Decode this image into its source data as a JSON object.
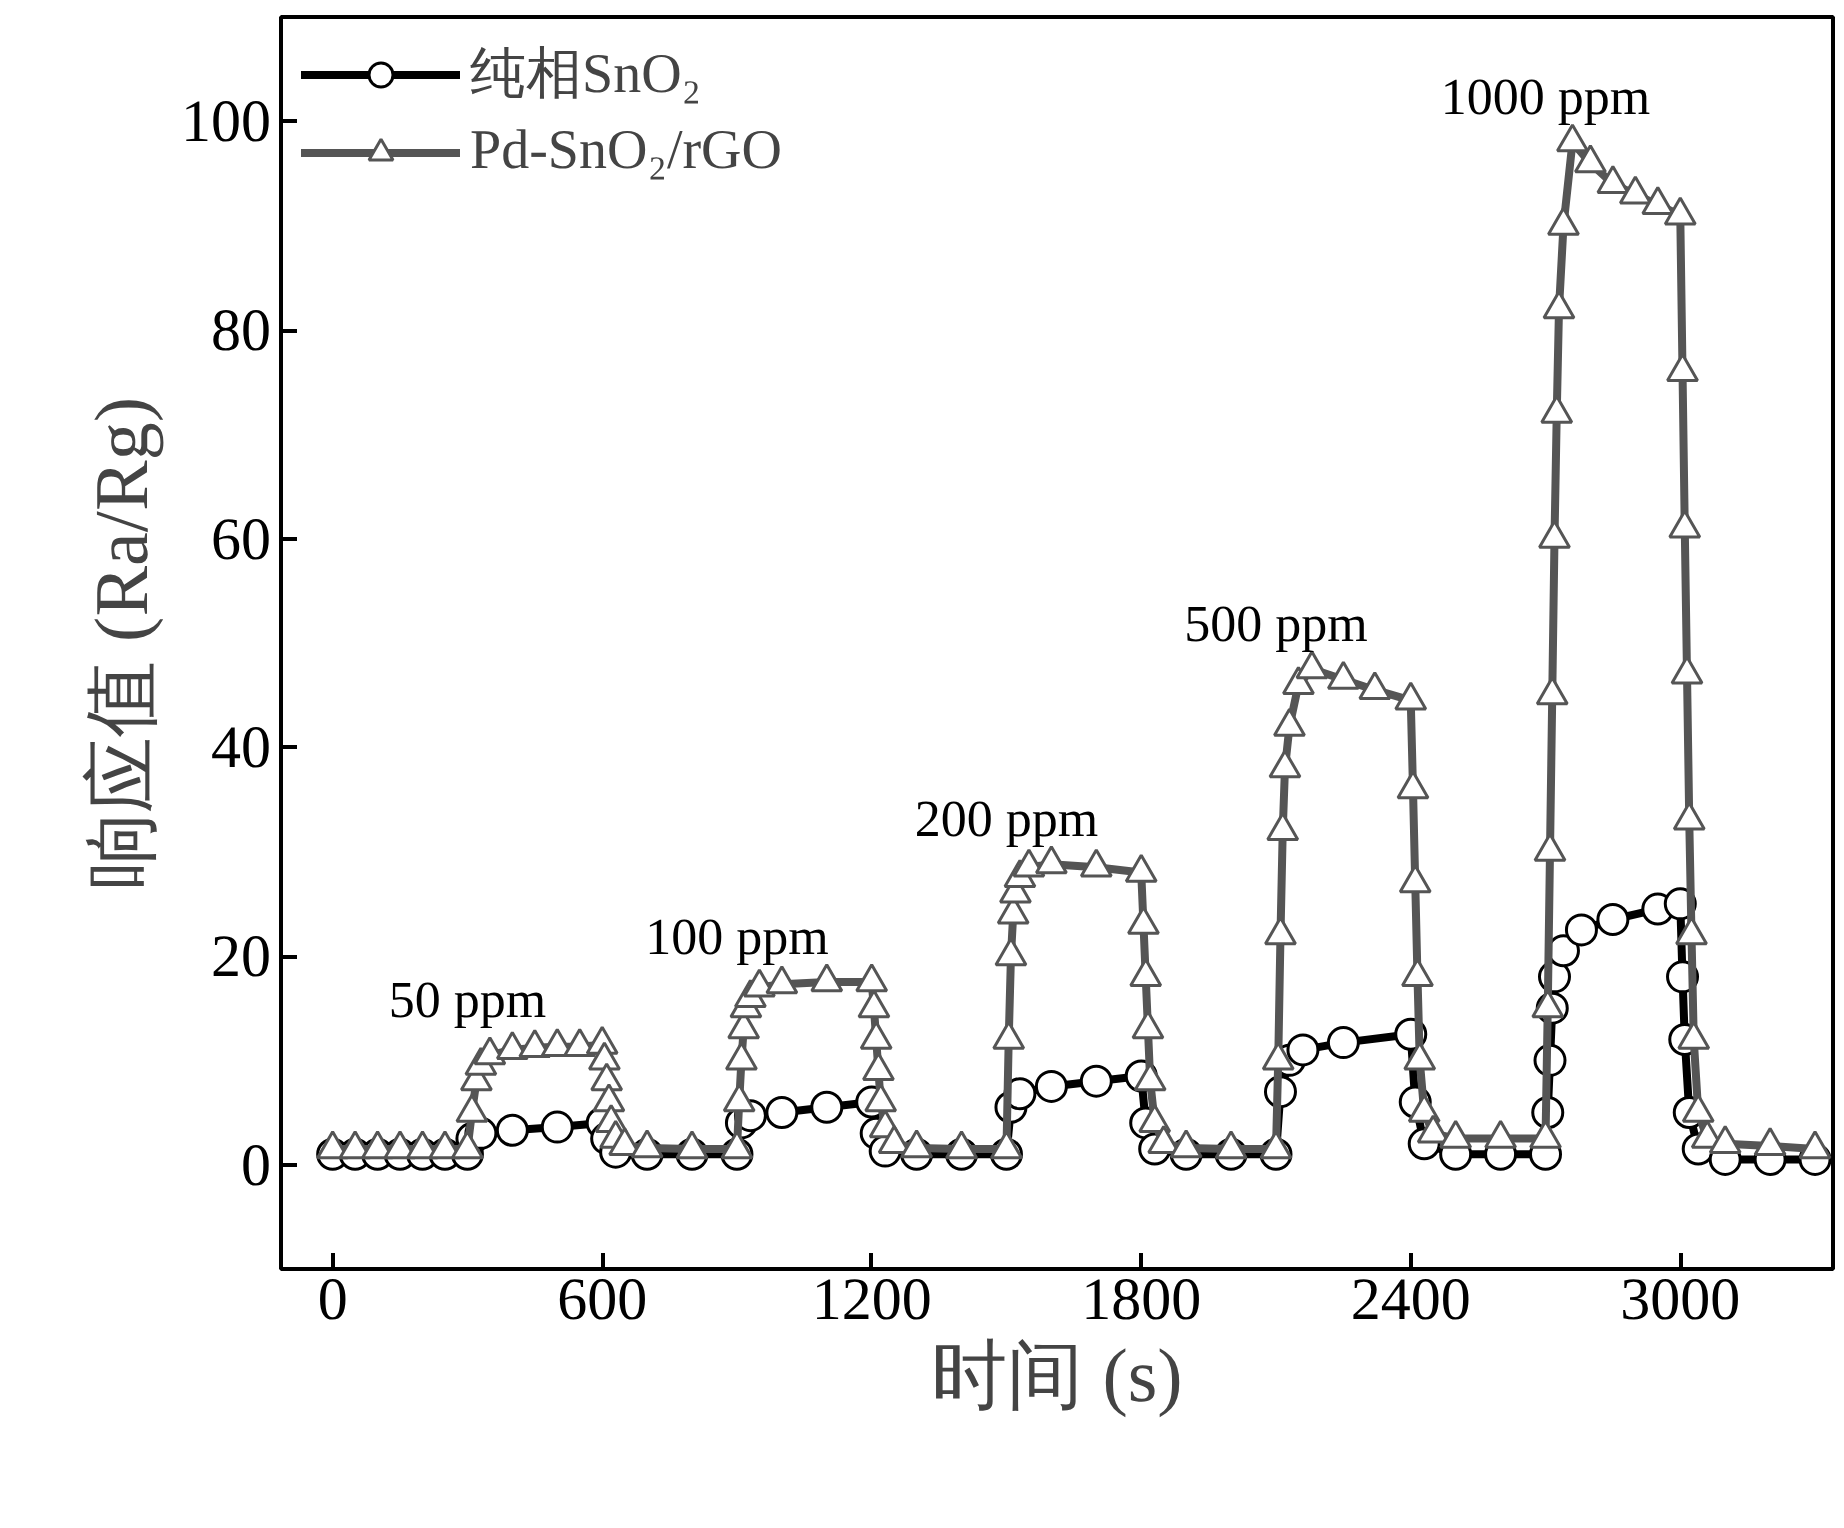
{
  "chart_data": {
    "type": "line",
    "xlabel": "时间 (s)",
    "ylabel": "响应值 (Ra/Rg)",
    "xlim": [
      -115,
      3340
    ],
    "ylim": [
      -10,
      110
    ],
    "xticks": [
      0,
      600,
      1200,
      1800,
      2400,
      3000
    ],
    "yticks": [
      0,
      20,
      40,
      60,
      80,
      100
    ],
    "grid": false,
    "legend": "top left",
    "line_style": "solid",
    "series": [
      {
        "name": "纯相SnO₂",
        "color": "#000000",
        "marker": "circle",
        "x": [
          0,
          50,
          100,
          150,
          200,
          250,
          300,
          310,
          330,
          400,
          500,
          600,
          610,
          630,
          700,
          800,
          900,
          910,
          930,
          1000,
          1100,
          1200,
          1210,
          1230,
          1300,
          1400,
          1500,
          1510,
          1530,
          1600,
          1700,
          1800,
          1810,
          1830,
          1900,
          2000,
          2100,
          2110,
          2130,
          2160,
          2250,
          2400,
          2410,
          2430,
          2500,
          2600,
          2700,
          2705,
          2710,
          2715,
          2720,
          2740,
          2780,
          2850,
          2950,
          3000,
          3005,
          3010,
          3020,
          3040,
          3100,
          3200,
          3300
        ],
        "values": [
          1,
          1,
          1,
          1,
          1,
          1,
          1,
          2.5,
          3,
          3.3,
          3.6,
          4,
          2.5,
          1.2,
          1,
          1,
          1,
          4,
          4.7,
          5,
          5.5,
          6,
          3,
          1.3,
          1,
          1,
          1,
          5.5,
          6.8,
          7.5,
          8,
          8.5,
          4,
          1.5,
          1,
          1,
          1,
          7,
          10,
          11,
          11.7,
          12.5,
          6,
          2,
          1,
          1,
          1,
          5,
          10,
          15,
          18,
          20.5,
          22.5,
          23.5,
          24.5,
          25,
          18,
          12,
          5,
          1.5,
          0.5,
          0.5,
          0.5
        ]
      },
      {
        "name": "Pd-SnO₂/rGO",
        "color": "#555555",
        "marker": "triangle",
        "x": [
          0,
          50,
          100,
          150,
          200,
          250,
          300,
          310,
          320,
          330,
          350,
          400,
          450,
          500,
          550,
          600,
          605,
          610,
          615,
          620,
          630,
          650,
          700,
          800,
          900,
          905,
          910,
          915,
          920,
          930,
          950,
          1000,
          1100,
          1200,
          1205,
          1210,
          1215,
          1220,
          1230,
          1250,
          1300,
          1400,
          1500,
          1505,
          1510,
          1515,
          1520,
          1530,
          1550,
          1600,
          1700,
          1800,
          1805,
          1810,
          1815,
          1820,
          1830,
          1850,
          1900,
          2000,
          2100,
          2105,
          2110,
          2115,
          2120,
          2130,
          2150,
          2180,
          2250,
          2320,
          2400,
          2405,
          2410,
          2415,
          2420,
          2430,
          2450,
          2500,
          2600,
          2700,
          2705,
          2710,
          2715,
          2720,
          2725,
          2730,
          2740,
          2760,
          2800,
          2850,
          2900,
          2950,
          3000,
          3005,
          3010,
          3015,
          3020,
          3025,
          3030,
          3040,
          3060,
          3100,
          3200,
          3300
        ],
        "values": [
          1.5,
          1.5,
          1.5,
          1.5,
          1.5,
          1.5,
          1.5,
          5,
          8,
          9.5,
          10.5,
          11,
          11.2,
          11.3,
          11.3,
          11.5,
          10,
          8,
          6,
          4,
          2.5,
          1.8,
          1.6,
          1.5,
          1.5,
          6,
          10,
          13,
          15,
          16,
          17,
          17.3,
          17.5,
          17.5,
          15,
          12,
          9,
          6,
          3.5,
          2,
          1.6,
          1.5,
          1.5,
          12,
          20,
          24,
          26,
          27.5,
          28.5,
          28.8,
          28.5,
          28,
          23,
          18,
          13,
          8,
          4,
          2,
          1.6,
          1.5,
          1.5,
          10,
          22,
          32,
          38,
          42,
          46,
          47.5,
          46.5,
          45.5,
          44.5,
          36,
          27,
          18,
          10,
          5,
          3,
          2.5,
          2.5,
          2.5,
          15,
          30,
          45,
          60,
          72,
          82,
          90,
          98,
          96,
          94,
          93,
          92,
          91,
          76,
          61,
          47,
          33,
          22,
          12,
          5,
          2.5,
          2,
          1.8,
          1.5
        ]
      }
    ],
    "annotations": [
      "50 ppm",
      "100 ppm",
      "200 ppm",
      "500 ppm",
      "1000 ppm"
    ]
  }
}
